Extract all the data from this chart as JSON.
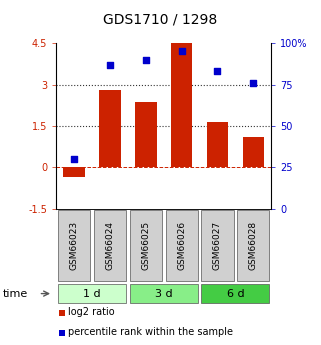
{
  "title": "GDS1710 / 1298",
  "samples": [
    "GSM66023",
    "GSM66024",
    "GSM66025",
    "GSM66026",
    "GSM66027",
    "GSM66028"
  ],
  "log2_ratio": [
    -0.35,
    2.8,
    2.35,
    4.5,
    1.65,
    1.1
  ],
  "percentile_rank_pct": [
    30,
    87,
    90,
    95,
    83,
    76
  ],
  "groups": [
    {
      "label": "1 d",
      "samples": [
        0,
        1
      ],
      "color": "#ccffcc"
    },
    {
      "label": "3 d",
      "samples": [
        2,
        3
      ],
      "color": "#88ee88"
    },
    {
      "label": "6 d",
      "samples": [
        4,
        5
      ],
      "color": "#44cc44"
    }
  ],
  "bar_color": "#cc2200",
  "dot_color": "#0000cc",
  "ylim_left": [
    -1.5,
    4.5
  ],
  "ylim_right": [
    0,
    100
  ],
  "yticks_left": [
    -1.5,
    0,
    1.5,
    3,
    4.5
  ],
  "yticks_right": [
    0,
    25,
    50,
    75,
    100
  ],
  "ytick_labels_left": [
    "-1.5",
    "0",
    "1.5",
    "3",
    "4.5"
  ],
  "ytick_labels_right": [
    "0",
    "25",
    "50",
    "75",
    "100%"
  ],
  "legend_labels": [
    "log2 ratio",
    "percentile rank within the sample"
  ],
  "legend_colors": [
    "#cc2200",
    "#0000cc"
  ],
  "time_label": "time",
  "bar_width": 0.6,
  "sample_box_color": "#d0d0d0",
  "fig_width": 3.21,
  "fig_height": 3.45,
  "fig_dpi": 100
}
